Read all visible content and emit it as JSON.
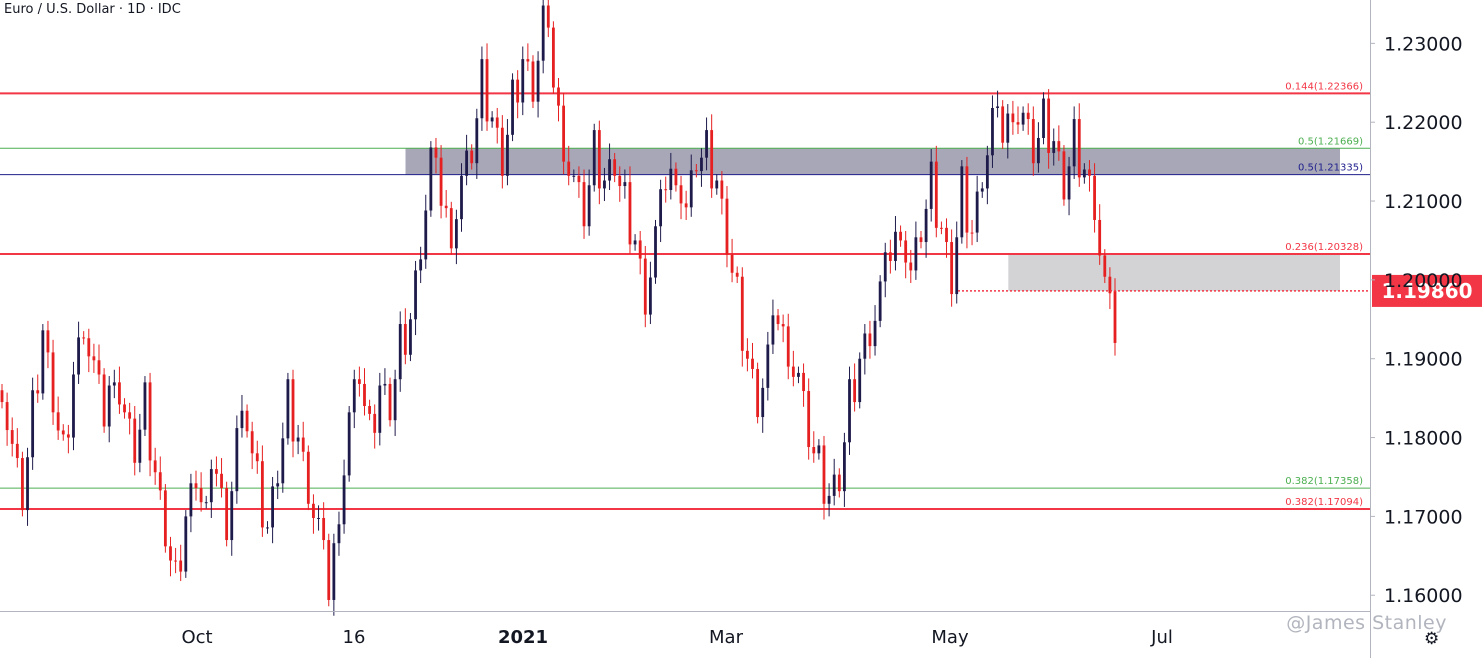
{
  "title": "Euro / U.S. Dollar · 1D · IDC",
  "watermark": "@James Stanley",
  "current_price_label": "1.19860",
  "colors": {
    "bull": "#1e1b4b",
    "bear": "#e62020",
    "red_level": "#f23645",
    "green_level": "#4caf50",
    "navy_level": "#1f1f8c",
    "zone_gray": "#8a8aa0",
    "zone_light": "#c8c8cc"
  },
  "chart_data": {
    "type": "candlestick",
    "y_range": [
      1.158,
      1.2355
    ],
    "y_ticks": [
      "1.16000",
      "1.17000",
      "1.18000",
      "1.19000",
      "1.20000",
      "1.21000",
      "1.22000",
      "1.23000"
    ],
    "x_labels": [
      {
        "label": "Oct",
        "bold": false
      },
      {
        "label": "16",
        "bold": false
      },
      {
        "label": "2021",
        "bold": true
      },
      {
        "label": "Mar",
        "bold": false
      },
      {
        "label": "May",
        "bold": false
      },
      {
        "label": "Jul",
        "bold": false
      }
    ],
    "last_price": 1.1986,
    "levels": [
      {
        "label": "0.144(1.22366)",
        "value": 1.22366,
        "color": "#f23645",
        "width": 2
      },
      {
        "label": "0.5(1.21669)",
        "value": 1.21669,
        "color": "#4caf50",
        "width": 1
      },
      {
        "label": "0.5(1.21335)",
        "value": 1.21335,
        "color": "#1f1f8c",
        "width": 1
      },
      {
        "label": "0.236(1.20328)",
        "value": 1.20328,
        "color": "#f23645",
        "width": 2
      },
      {
        "label": "0.382(1.17358)",
        "value": 1.17358,
        "color": "#4caf50",
        "width": 1
      },
      {
        "label": "0.382(1.17094)",
        "value": 1.17094,
        "color": "#f23645",
        "width": 2
      }
    ],
    "zones": [
      {
        "from": 1.21335,
        "to": 1.21669,
        "color": "#8a8aa0",
        "opacity": 0.75,
        "start_fraction": 0.296
      },
      {
        "from": 1.1986,
        "to": 1.20328,
        "color": "#c8c8cc",
        "opacity": 0.8,
        "start_fraction": 0.736
      }
    ],
    "path": [
      1.1875,
      1.178,
      1.172,
      1.183,
      1.193,
      1.185,
      1.178,
      1.188,
      1.195,
      1.188,
      1.182,
      1.19,
      1.182,
      1.178,
      1.184,
      1.175,
      1.168,
      1.162,
      1.17,
      1.176,
      1.17,
      1.176,
      1.17,
      1.18,
      1.182,
      1.174,
      1.168,
      1.176,
      1.185,
      1.18,
      1.174,
      1.168,
      1.16,
      1.172,
      1.182,
      1.188,
      1.18,
      1.186,
      1.184,
      1.192,
      1.195,
      1.205,
      1.215,
      1.21,
      1.207,
      1.212,
      1.216,
      1.225,
      1.22,
      1.215,
      1.223,
      1.228,
      1.225,
      1.233,
      1.225,
      1.218,
      1.212,
      1.208,
      1.216,
      1.212,
      1.215,
      1.21,
      1.205,
      1.198,
      1.205,
      1.212,
      1.215,
      1.208,
      1.215,
      1.216,
      1.212,
      1.205,
      1.198,
      1.19,
      1.185,
      1.19,
      1.195,
      1.192,
      1.187,
      1.18,
      1.176,
      1.172,
      1.175,
      1.185,
      1.19,
      1.194,
      1.198,
      1.203,
      1.208,
      1.2,
      1.206,
      1.212,
      1.206,
      1.2,
      1.212,
      1.206,
      1.214,
      1.22,
      1.218,
      1.223,
      1.22,
      1.216,
      1.22,
      1.217,
      1.212,
      1.218,
      1.214,
      1.21,
      1.1986,
      1.192
    ]
  }
}
